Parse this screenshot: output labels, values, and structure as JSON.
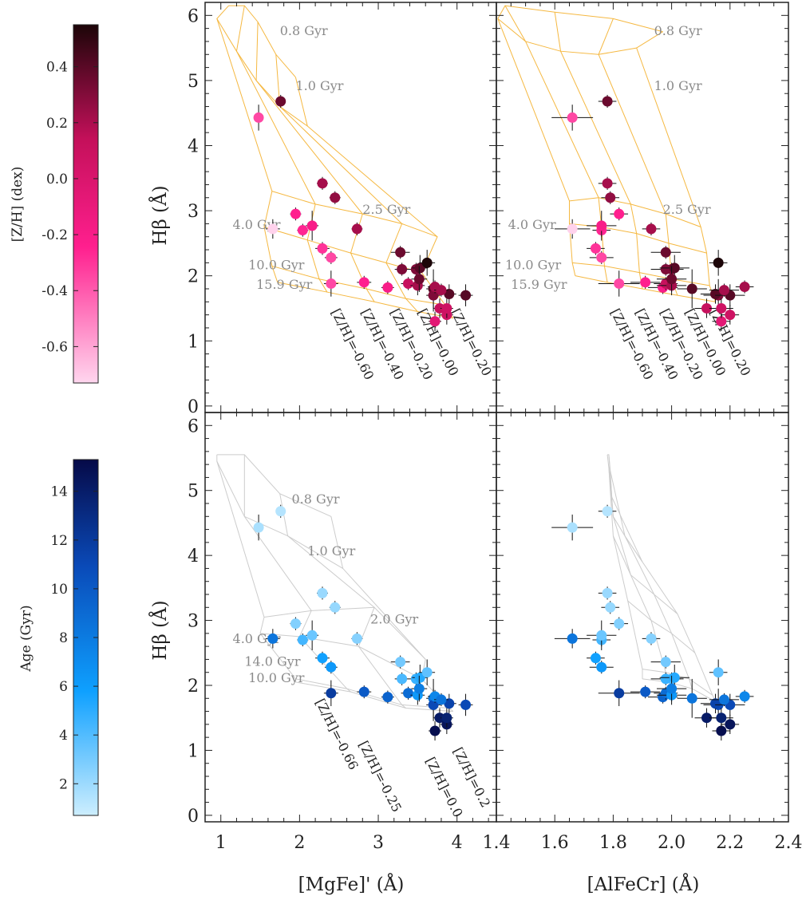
{
  "chart_data": {
    "type": "scatter",
    "xlabels": [
      "[MgFe]' (Å)",
      "[AlFeCr] (Å)"
    ],
    "ylabel": "Hβ (Å)",
    "xlim_left": [
      0.8,
      4.5
    ],
    "xlim_right": [
      1.4,
      2.4
    ],
    "ylim": [
      -0.1,
      6.2
    ],
    "xticks_left": [
      "1",
      "2",
      "3",
      "4"
    ],
    "xticks_right": [
      "1.4",
      "1.6",
      "1.8",
      "2.0",
      "2.2",
      "2.4"
    ],
    "yticks": [
      "0",
      "1",
      "2",
      "3",
      "4",
      "5",
      "6"
    ],
    "colorbar_metallicity": {
      "label": "[Z/H] (dex)",
      "ticks": [
        "0.4",
        "0.2",
        "0.0",
        "-0.2",
        "-0.4",
        "-0.6"
      ],
      "range": [
        -0.73,
        0.55
      ],
      "colors": [
        "#ffd6ee",
        "#ff1f8e",
        "#c4105a",
        "#1c0508"
      ]
    },
    "colorbar_age": {
      "label": "Age (Gyr)",
      "ticks": [
        "14",
        "12",
        "10",
        "8",
        "6",
        "4",
        "2"
      ],
      "range": [
        0.7,
        15.3
      ],
      "colors": [
        "#cdeefe",
        "#0ea0ff",
        "#0a4ab8",
        "#060a48"
      ]
    },
    "grid_top_left": {
      "color": "#f5b841",
      "age_labels": [
        "0.8 Gyr",
        "1.0 Gyr",
        "2.5 Gyr",
        "4.0 Gyr",
        "10.0 Gyr",
        "15.9 Gyr"
      ],
      "metal_labels": [
        "[Z/H]=-0.60",
        "[Z/H]=-0.40",
        "[Z/H]=-0.20",
        "[Z/H]=0.00",
        "[Z/H]=0.20"
      ],
      "ages": [
        [
          [
            1.1,
            6.15
          ],
          [
            1.3,
            6.15
          ],
          [
            1.47,
            5.9
          ],
          [
            1.7,
            5.4
          ],
          [
            1.95,
            5.05
          ]
        ],
        [
          [
            0.95,
            5.95
          ],
          [
            1.2,
            5.45
          ],
          [
            1.45,
            5.0
          ],
          [
            1.75,
            4.6
          ],
          [
            2.1,
            4.3
          ]
        ],
        [
          [
            1.65,
            3.3
          ],
          [
            2.2,
            3.1
          ],
          [
            2.8,
            2.95
          ],
          [
            3.3,
            2.8
          ],
          [
            3.75,
            2.6
          ]
        ],
        [
          [
            1.55,
            2.75
          ],
          [
            2.1,
            2.55
          ],
          [
            2.65,
            2.35
          ],
          [
            3.1,
            2.2
          ],
          [
            3.55,
            2.05
          ]
        ],
        [
          [
            1.65,
            2.15
          ],
          [
            2.25,
            1.95
          ],
          [
            2.85,
            1.8
          ],
          [
            3.35,
            1.65
          ],
          [
            3.85,
            1.55
          ]
        ],
        [
          [
            1.72,
            1.9
          ],
          [
            2.35,
            1.75
          ],
          [
            2.95,
            1.6
          ],
          [
            3.5,
            1.45
          ],
          [
            3.95,
            1.35
          ]
        ]
      ]
    },
    "grid_top_right": {
      "color": "#f5b841",
      "age_labels": [
        "0.8 Gyr",
        "1.0 Gyr",
        "2.5 Gyr",
        "4.0 Gyr",
        "10.0 Gyr",
        "15.9 Gyr"
      ],
      "metal_labels": [
        "[Z/H]=-0.60",
        "[Z/H]=-0.40",
        "[Z/H]=-0.20",
        "[Z/H]=0.00",
        "[Z/H]=0.20"
      ],
      "ages": [
        [
          [
            1.405,
            5.95
          ],
          [
            1.43,
            6.15
          ],
          [
            1.6,
            6.05
          ],
          [
            1.8,
            5.95
          ],
          [
            1.97,
            5.75
          ]
        ],
        [
          [
            1.405,
            5.95
          ],
          [
            1.5,
            5.6
          ],
          [
            1.62,
            5.45
          ],
          [
            1.75,
            5.4
          ],
          [
            1.88,
            5.5
          ]
        ],
        [
          [
            1.65,
            3.15
          ],
          [
            1.75,
            3.2
          ],
          [
            1.86,
            3.1
          ],
          [
            1.98,
            2.95
          ],
          [
            2.1,
            2.75
          ]
        ],
        [
          [
            1.65,
            2.8
          ],
          [
            1.76,
            2.75
          ],
          [
            1.88,
            2.65
          ],
          [
            1.99,
            2.5
          ],
          [
            2.12,
            2.35
          ]
        ],
        [
          [
            1.66,
            2.2
          ],
          [
            1.77,
            2.15
          ],
          [
            1.89,
            2.05
          ],
          [
            2.0,
            1.95
          ],
          [
            2.13,
            1.85
          ]
        ],
        [
          [
            1.67,
            2.0
          ],
          [
            1.78,
            1.9
          ],
          [
            1.9,
            1.8
          ],
          [
            2.02,
            1.7
          ],
          [
            2.15,
            1.6
          ]
        ]
      ]
    },
    "grid_bottom_left": {
      "color": "#cccccc",
      "age_labels": [
        "0.8 Gyr",
        "1.0 Gyr",
        "2.0 Gyr",
        "4.0 Gyr",
        "14.0 Gyr",
        "10.0 Gyr"
      ],
      "metal_labels": [
        "[Z/H]=-0.66",
        "[Z/H]=-0.25",
        "[Z/H]=0.0",
        "[Z/H]=0.2"
      ],
      "ages": [
        [
          [
            0.95,
            5.55
          ],
          [
            1.3,
            5.55
          ],
          [
            1.75,
            4.95
          ],
          [
            2.4,
            4.6
          ]
        ],
        [
          [
            0.95,
            5.45
          ],
          [
            1.3,
            4.6
          ],
          [
            1.85,
            4.3
          ],
          [
            2.55,
            3.8
          ]
        ],
        [
          [
            1.55,
            3.05
          ],
          [
            2.15,
            3.15
          ],
          [
            2.95,
            3.2
          ],
          [
            3.6,
            2.4
          ]
        ],
        [
          [
            1.5,
            2.8
          ],
          [
            2.0,
            2.75
          ],
          [
            2.75,
            2.6
          ],
          [
            3.55,
            2.1
          ]
        ],
        [
          [
            1.95,
            2.1
          ],
          [
            2.6,
            1.95
          ],
          [
            3.3,
            1.7
          ],
          [
            3.9,
            1.65
          ]
        ],
        [
          [
            1.95,
            2.05
          ],
          [
            2.65,
            1.9
          ],
          [
            3.35,
            1.65
          ],
          [
            3.95,
            1.6
          ]
        ]
      ]
    },
    "grid_bottom_right": {
      "color": "#cccccc",
      "ages": [
        [
          [
            1.78,
            5.55
          ],
          [
            1.785,
            5.55
          ],
          [
            1.79,
            5.3
          ],
          [
            1.795,
            4.9
          ]
        ],
        [
          [
            1.785,
            5.35
          ],
          [
            1.8,
            4.6
          ],
          [
            1.84,
            4.3
          ],
          [
            1.9,
            3.9
          ]
        ],
        [
          [
            1.8,
            4.3
          ],
          [
            1.86,
            3.7
          ],
          [
            1.94,
            3.4
          ],
          [
            2.02,
            3.1
          ]
        ],
        [
          [
            1.85,
            3.3
          ],
          [
            1.93,
            3.0
          ],
          [
            2.0,
            2.8
          ],
          [
            2.08,
            2.5
          ]
        ],
        [
          [
            1.9,
            2.25
          ],
          [
            1.98,
            2.2
          ],
          [
            2.06,
            2.1
          ],
          [
            2.14,
            1.85
          ]
        ],
        [
          [
            1.9,
            2.1
          ],
          [
            1.99,
            2.05
          ],
          [
            2.07,
            1.95
          ],
          [
            2.15,
            1.75
          ]
        ]
      ]
    },
    "points": [
      {
        "mgfe": 1.48,
        "alfecr": 1.66,
        "hb": 4.43,
        "zh": -0.4,
        "age": 1.6,
        "xerr_mgfe": 0.02,
        "xerr_alfecr": 0.06,
        "yerr": 0.15
      },
      {
        "mgfe": 1.76,
        "alfecr": 1.78,
        "hb": 4.68,
        "zh": 0.35,
        "age": 1.3,
        "xerr_mgfe": 0.02,
        "xerr_alfecr": 0.02,
        "yerr": 0.05
      },
      {
        "mgfe": 1.66,
        "alfecr": 1.66,
        "hb": 2.72,
        "zh": -0.72,
        "age": 8.0,
        "xerr_mgfe": 0.05,
        "xerr_alfecr": 0.05,
        "yerr": 0.1
      },
      {
        "mgfe": 1.95,
        "alfecr": 1.82,
        "hb": 2.95,
        "zh": -0.3,
        "age": 2.6,
        "xerr_mgfe": 0.03,
        "xerr_alfecr": 0.02,
        "yerr": 0.05
      },
      {
        "mgfe": 2.04,
        "alfecr": 1.76,
        "hb": 2.7,
        "zh": -0.32,
        "age": 4.2,
        "xerr_mgfe": 0.03,
        "xerr_alfecr": 0.02,
        "yerr": 0.05
      },
      {
        "mgfe": 2.16,
        "alfecr": 1.76,
        "hb": 2.77,
        "zh": -0.25,
        "age": 3.2,
        "xerr_mgfe": 0.04,
        "xerr_alfecr": 0.04,
        "yerr": 0.18
      },
      {
        "mgfe": 2.29,
        "alfecr": 1.78,
        "hb": 3.42,
        "zh": 0.2,
        "age": 2.0,
        "xerr_mgfe": 0.03,
        "xerr_alfecr": 0.02,
        "yerr": 0.05
      },
      {
        "mgfe": 2.45,
        "alfecr": 1.79,
        "hb": 3.2,
        "zh": 0.25,
        "age": 2.1,
        "xerr_mgfe": 0.03,
        "xerr_alfecr": 0.02,
        "yerr": 0.05
      },
      {
        "mgfe": 2.29,
        "alfecr": 1.74,
        "hb": 2.42,
        "zh": -0.35,
        "age": 5.5,
        "xerr_mgfe": 0.05,
        "xerr_alfecr": 0.02,
        "yerr": 0.05
      },
      {
        "mgfe": 2.4,
        "alfecr": 1.76,
        "hb": 2.28,
        "zh": -0.4,
        "age": 6.0,
        "xerr_mgfe": 0.04,
        "xerr_alfecr": 0.03,
        "yerr": 0.05
      },
      {
        "mgfe": 2.4,
        "alfecr": 1.82,
        "hb": 1.88,
        "zh": -0.4,
        "age": 11.5,
        "xerr_mgfe": 0.05,
        "xerr_alfecr": 0.06,
        "yerr": 0.15
      },
      {
        "mgfe": 2.73,
        "alfecr": 1.93,
        "hb": 2.72,
        "zh": 0.2,
        "age": 2.5,
        "xerr_mgfe": 0.03,
        "xerr_alfecr": 0.02,
        "yerr": 0.05
      },
      {
        "mgfe": 2.82,
        "alfecr": 1.91,
        "hb": 1.9,
        "zh": -0.3,
        "age": 9.5,
        "xerr_mgfe": 0.05,
        "xerr_alfecr": 0.04,
        "yerr": 0.05
      },
      {
        "mgfe": 3.12,
        "alfecr": 1.97,
        "hb": 1.82,
        "zh": -0.25,
        "age": 9.0,
        "xerr_mgfe": 0.04,
        "xerr_alfecr": 0.04,
        "yerr": 0.05
      },
      {
        "mgfe": 3.28,
        "alfecr": 1.98,
        "hb": 2.36,
        "zh": 0.35,
        "age": 3.0,
        "xerr_mgfe": 0.08,
        "xerr_alfecr": 0.04,
        "yerr": 0.05
      },
      {
        "mgfe": 3.3,
        "alfecr": 2.0,
        "hb": 2.1,
        "zh": 0.3,
        "age": 4.0,
        "xerr_mgfe": 0.05,
        "xerr_alfecr": 0.03,
        "yerr": 0.05
      },
      {
        "mgfe": 3.38,
        "alfecr": 1.98,
        "hb": 1.88,
        "zh": 0.1,
        "age": 8.5,
        "xerr_mgfe": 0.05,
        "xerr_alfecr": 0.03,
        "yerr": 0.05
      },
      {
        "mgfe": 3.48,
        "alfecr": 1.98,
        "hb": 2.1,
        "zh": 0.3,
        "age": 4.5,
        "xerr_mgfe": 0.05,
        "xerr_alfecr": 0.04,
        "yerr": 0.05
      },
      {
        "mgfe": 3.5,
        "alfecr": 2.0,
        "hb": 1.85,
        "zh": 0.2,
        "age": 6.0,
        "xerr_mgfe": 0.05,
        "xerr_alfecr": 0.04,
        "yerr": 0.1
      },
      {
        "mgfe": 3.53,
        "alfecr": 2.01,
        "hb": 2.12,
        "zh": 0.4,
        "age": 5.0,
        "xerr_mgfe": 0.06,
        "xerr_alfecr": 0.04,
        "yerr": 0.15
      },
      {
        "mgfe": 3.52,
        "alfecr": 2.0,
        "hb": 1.95,
        "zh": 0.35,
        "age": 7.5,
        "xerr_mgfe": 0.06,
        "xerr_alfecr": 0.04,
        "yerr": 0.15
      },
      {
        "mgfe": 3.62,
        "alfecr": 2.16,
        "hb": 2.2,
        "zh": 0.55,
        "age": 3.5,
        "xerr_mgfe": 0.06,
        "xerr_alfecr": 0.02,
        "yerr": 0.15
      },
      {
        "mgfe": 3.7,
        "alfecr": 2.07,
        "hb": 1.8,
        "zh": 0.4,
        "age": 8.0,
        "xerr_mgfe": 0.05,
        "xerr_alfecr": 0.04,
        "yerr": 0.25
      },
      {
        "mgfe": 3.7,
        "alfecr": 2.16,
        "hb": 1.7,
        "zh": 0.3,
        "age": 10.5,
        "xerr_mgfe": 0.05,
        "xerr_alfecr": 0.04,
        "yerr": 0.2
      },
      {
        "mgfe": 3.72,
        "alfecr": 2.17,
        "hb": 1.3,
        "zh": -0.1,
        "age": 15.0,
        "xerr_mgfe": 0.04,
        "xerr_alfecr": 0.02,
        "yerr": 0.1
      },
      {
        "mgfe": 3.78,
        "alfecr": 2.12,
        "hb": 1.5,
        "zh": 0.1,
        "age": 14.0,
        "xerr_mgfe": 0.04,
        "xerr_alfecr": 0.03,
        "yerr": 0.1
      },
      {
        "mgfe": 3.87,
        "alfecr": 2.2,
        "hb": 1.4,
        "zh": 0.05,
        "age": 14.5,
        "xerr_mgfe": 0.04,
        "xerr_alfecr": 0.02,
        "yerr": 0.1
      },
      {
        "mgfe": 3.87,
        "alfecr": 2.17,
        "hb": 1.5,
        "zh": 0.05,
        "age": 13.5,
        "xerr_mgfe": 0.04,
        "xerr_alfecr": 0.03,
        "yerr": 0.1
      },
      {
        "mgfe": 3.9,
        "alfecr": 2.15,
        "hb": 1.72,
        "zh": 0.4,
        "age": 11.0,
        "xerr_mgfe": 0.05,
        "xerr_alfecr": 0.04,
        "yerr": 0.1
      },
      {
        "mgfe": 4.11,
        "alfecr": 2.2,
        "hb": 1.7,
        "zh": 0.4,
        "age": 10.5,
        "xerr_mgfe": 0.05,
        "xerr_alfecr": 0.04,
        "yerr": 0.12
      },
      {
        "mgfe": 3.72,
        "alfecr": 2.25,
        "hb": 1.83,
        "zh": 0.2,
        "age": 7.0,
        "xerr_mgfe": 0.05,
        "xerr_alfecr": 0.02,
        "yerr": 0.05
      },
      {
        "mgfe": 3.8,
        "alfecr": 2.18,
        "hb": 1.78,
        "zh": 0.2,
        "age": 8.0,
        "xerr_mgfe": 0.05,
        "xerr_alfecr": 0.04,
        "yerr": 0.05
      }
    ]
  }
}
